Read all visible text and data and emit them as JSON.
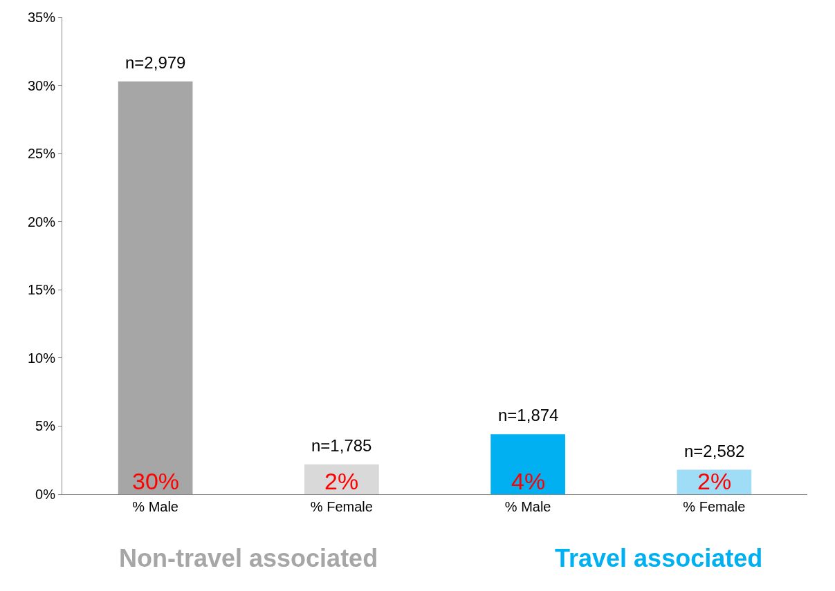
{
  "chart_data": {
    "type": "bar",
    "categories": [
      "% Male",
      "% Female",
      "% Male",
      "% Female"
    ],
    "values": [
      30.3,
      2.2,
      4.4,
      1.8
    ],
    "colors": [
      "#a6a6a6",
      "#d9d9d9",
      "#00b0f0",
      "#9fdcf5"
    ],
    "value_labels": [
      "30%",
      "2%",
      "4%",
      "2%"
    ],
    "annotations": [
      "n=2,979",
      "n=1,785",
      "n=1,874",
      "n=2,582",
      "Non-travel associated",
      "Travel associated"
    ],
    "ylim": [
      0,
      35
    ],
    "yticks": [
      {
        "value": 0,
        "label": "0%"
      },
      {
        "value": 5,
        "label": "5%"
      },
      {
        "value": 10,
        "label": "10%"
      },
      {
        "value": 15,
        "label": "15%"
      },
      {
        "value": 20,
        "label": "20%"
      },
      {
        "value": 25,
        "label": "25%"
      },
      {
        "value": 30,
        "label": "30%"
      },
      {
        "value": 35,
        "label": "35%"
      }
    ],
    "legend": false
  }
}
